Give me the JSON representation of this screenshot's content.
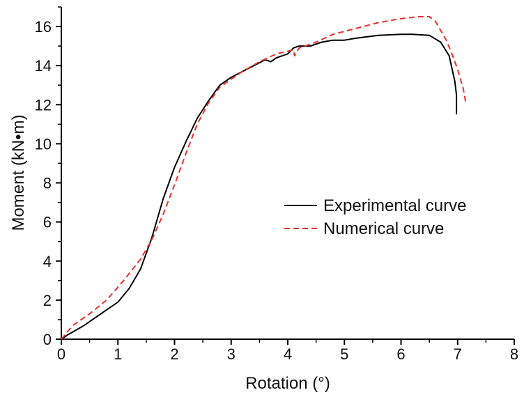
{
  "chart_data": {
    "type": "line",
    "title": "",
    "xlabel": "Rotation (°)",
    "ylabel": "Moment (kN•m)",
    "xlim": [
      0,
      8
    ],
    "ylim": [
      0,
      17
    ],
    "xticks": [
      0,
      1,
      2,
      3,
      4,
      5,
      6,
      7,
      8
    ],
    "yticks": [
      0,
      2,
      4,
      6,
      8,
      10,
      12,
      14,
      16
    ],
    "grid": false,
    "legend_position": "center-right",
    "series": [
      {
        "name": "Experimental curve",
        "color": "#000000",
        "style": "solid",
        "x": [
          0.0,
          0.1,
          0.4,
          0.7,
          1.0,
          1.2,
          1.4,
          1.6,
          1.8,
          2.0,
          2.2,
          2.4,
          2.6,
          2.8,
          3.0,
          3.2,
          3.4,
          3.6,
          3.7,
          3.8,
          4.0,
          4.1,
          4.2,
          4.4,
          4.6,
          4.8,
          5.0,
          5.2,
          5.6,
          6.0,
          6.2,
          6.5,
          6.7,
          6.85,
          6.95,
          6.98,
          6.98
        ],
        "y": [
          0.0,
          0.2,
          0.7,
          1.3,
          1.9,
          2.6,
          3.6,
          5.2,
          7.2,
          8.8,
          10.1,
          11.3,
          12.2,
          13.0,
          13.4,
          13.7,
          14.0,
          14.3,
          14.2,
          14.4,
          14.6,
          14.9,
          15.0,
          15.0,
          15.2,
          15.3,
          15.3,
          15.4,
          15.55,
          15.6,
          15.6,
          15.55,
          15.2,
          14.5,
          13.2,
          12.5,
          11.5
        ]
      },
      {
        "name": "Numerical curve",
        "color": "#e8302a",
        "style": "dashed",
        "x": [
          0.0,
          0.2,
          0.5,
          0.8,
          1.1,
          1.4,
          1.6,
          1.8,
          2.0,
          2.2,
          2.4,
          2.6,
          2.8,
          3.0,
          3.2,
          3.5,
          3.8,
          4.1,
          4.12,
          4.2,
          4.5,
          4.8,
          5.2,
          5.6,
          6.0,
          6.3,
          6.5,
          6.6,
          6.7,
          6.8,
          6.9,
          7.0,
          7.1,
          7.15
        ],
        "y": [
          0.0,
          0.7,
          1.3,
          2.0,
          3.0,
          4.1,
          5.1,
          6.4,
          7.9,
          9.5,
          11.0,
          12.1,
          12.9,
          13.3,
          13.7,
          14.2,
          14.6,
          14.8,
          14.5,
          14.9,
          15.2,
          15.6,
          15.9,
          16.2,
          16.4,
          16.5,
          16.5,
          16.3,
          15.8,
          15.3,
          14.6,
          13.8,
          12.8,
          12.0
        ]
      }
    ]
  }
}
